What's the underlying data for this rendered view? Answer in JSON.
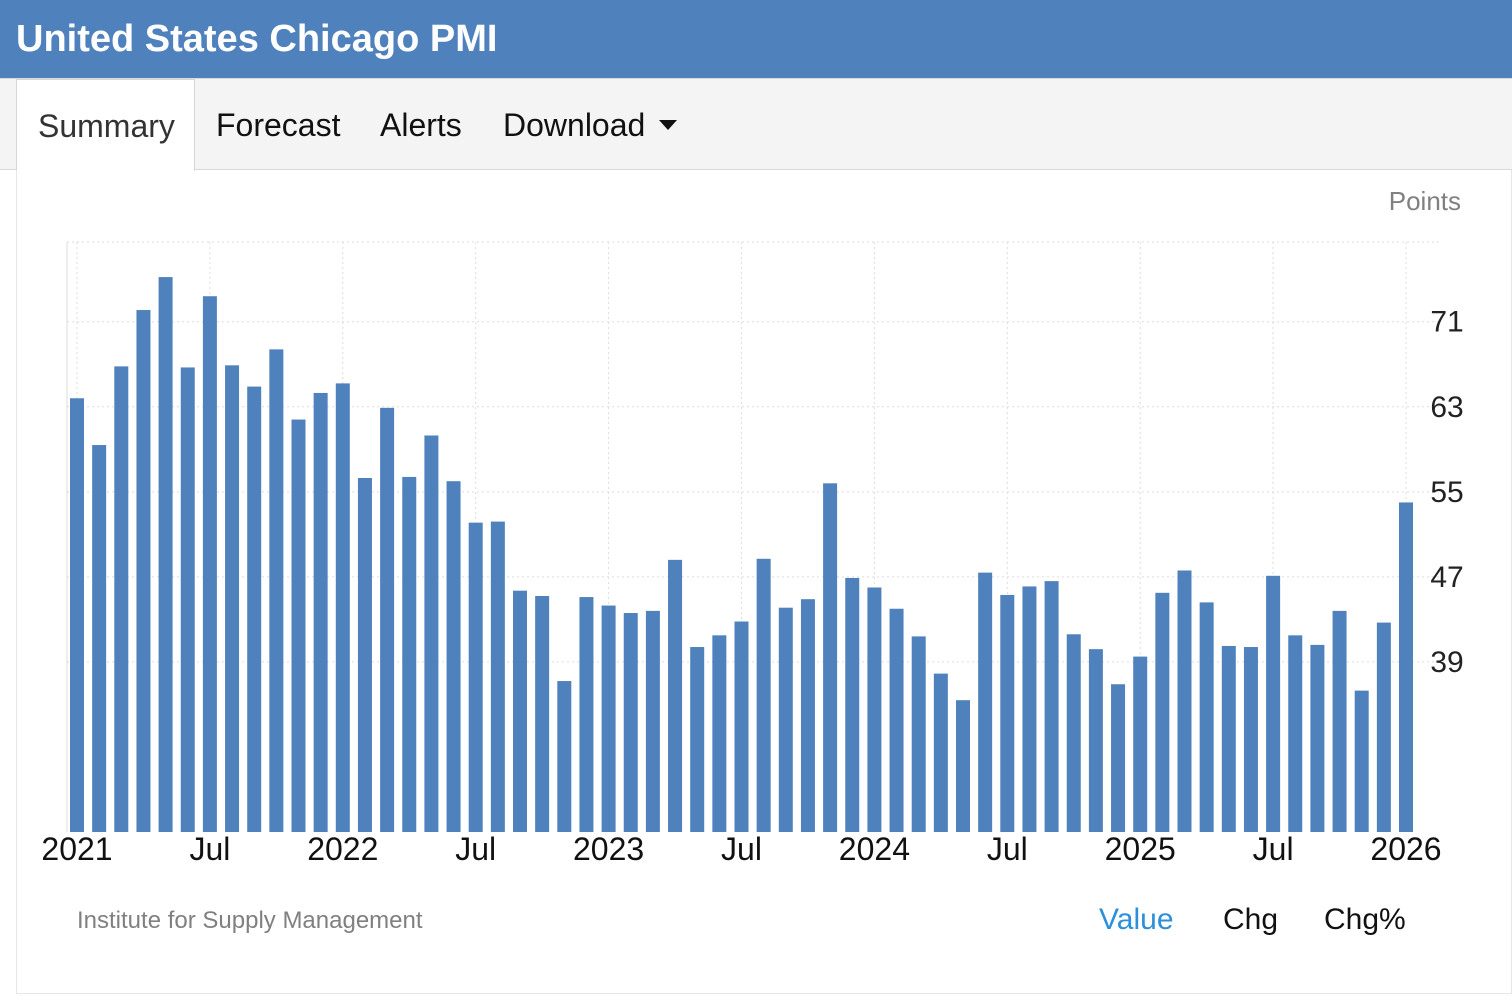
{
  "header": {
    "title": "United States Chicago PMI"
  },
  "tabs": [
    {
      "label": "Summary",
      "active": true
    },
    {
      "label": "Forecast",
      "active": false
    },
    {
      "label": "Alerts",
      "active": false
    },
    {
      "label": "Download",
      "active": false,
      "dropdown": true
    }
  ],
  "footer": {
    "source": "Institute for Supply Management",
    "toggles": [
      {
        "label": "Value",
        "active": true
      },
      {
        "label": "Chg",
        "active": false
      },
      {
        "label": "Chg%",
        "active": false
      }
    ]
  },
  "colors": {
    "header_bg": "#4f81bd",
    "bar": "#4f81bd",
    "active_toggle": "#2b8fdb"
  },
  "chart_data": {
    "type": "bar",
    "unit": "Points",
    "ylim": [
      23,
      78.5
    ],
    "yticks": [
      39,
      47,
      55,
      63,
      71
    ],
    "grid": true,
    "x_tick_labels": [
      {
        "label": "2021",
        "date": "2021-01"
      },
      {
        "label": "Jul",
        "date": "2021-07"
      },
      {
        "label": "2022",
        "date": "2022-01"
      },
      {
        "label": "Jul",
        "date": "2022-07"
      },
      {
        "label": "2023",
        "date": "2023-01"
      },
      {
        "label": "Jul",
        "date": "2023-07"
      },
      {
        "label": "2024",
        "date": "2024-01"
      },
      {
        "label": "Jul",
        "date": "2024-07"
      },
      {
        "label": "2025",
        "date": "2025-01"
      },
      {
        "label": "Jul",
        "date": "2025-07"
      },
      {
        "label": "2026",
        "date": "2026-01"
      }
    ],
    "categories": [
      "2021-01",
      "2021-02",
      "2021-03",
      "2021-04",
      "2021-05",
      "2021-06",
      "2021-07",
      "2021-08",
      "2021-09",
      "2021-10",
      "2021-11",
      "2021-12",
      "2022-01",
      "2022-02",
      "2022-03",
      "2022-04",
      "2022-05",
      "2022-06",
      "2022-07",
      "2022-08",
      "2022-09",
      "2022-10",
      "2022-11",
      "2022-12",
      "2023-01",
      "2023-02",
      "2023-03",
      "2023-04",
      "2023-05",
      "2023-06",
      "2023-07",
      "2023-08",
      "2023-09",
      "2023-10",
      "2023-11",
      "2023-12",
      "2024-01",
      "2024-02",
      "2024-03",
      "2024-04",
      "2024-05",
      "2024-06",
      "2024-07",
      "2024-08",
      "2024-09",
      "2024-10",
      "2024-11",
      "2024-12",
      "2025-01",
      "2025-02",
      "2025-03",
      "2025-04",
      "2025-05",
      "2025-06",
      "2025-07",
      "2025-08",
      "2025-09",
      "2025-10",
      "2025-11",
      "2025-12",
      "2026-01"
    ],
    "values": [
      63.8,
      59.4,
      66.8,
      72.1,
      75.2,
      66.7,
      73.4,
      66.9,
      64.9,
      68.4,
      61.8,
      64.3,
      65.2,
      56.3,
      62.9,
      56.4,
      60.3,
      56.0,
      52.1,
      52.2,
      45.7,
      45.2,
      37.2,
      45.1,
      44.3,
      43.6,
      43.8,
      48.6,
      40.4,
      41.5,
      42.8,
      48.7,
      44.1,
      44.9,
      55.8,
      46.9,
      46.0,
      44.0,
      41.4,
      37.9,
      35.4,
      47.4,
      45.3,
      46.1,
      46.6,
      41.6,
      40.2,
      36.9,
      39.5,
      45.5,
      47.6,
      44.6,
      40.5,
      40.4,
      47.1,
      41.5,
      40.6,
      43.8,
      36.3,
      42.7,
      54.0
    ]
  }
}
